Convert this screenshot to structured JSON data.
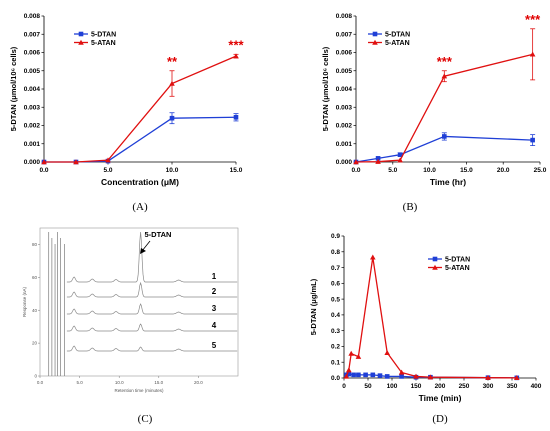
{
  "colors": {
    "dtan": "#1f3fd6",
    "atan": "#e01010",
    "star": "#e00000"
  },
  "panel_labels": {
    "a": "(A)",
    "b": "(B)",
    "c": "(C)",
    "d": "(D)"
  },
  "chart_data": [
    {
      "id": "A",
      "type": "line",
      "xlabel": "Concentration (μM)",
      "ylabel": "5-DTAN (μmol/10⁶ cells)",
      "xlim": [
        0,
        15
      ],
      "ylim": [
        0,
        0.008
      ],
      "xticks": [
        "0.0",
        "5.0",
        "10.0",
        "15.0"
      ],
      "yticks": [
        "0.000",
        "0.001",
        "0.002",
        "0.003",
        "0.004",
        "0.005",
        "0.006",
        "0.007",
        "0.008"
      ],
      "x": [
        0,
        2.5,
        5,
        10,
        15
      ],
      "series": [
        {
          "name": "5-DTAN",
          "values": [
            0,
            0,
            5e-05,
            0.0024,
            0.00245
          ],
          "errors": [
            0,
            0,
            0,
            0.0003,
            0.0002
          ]
        },
        {
          "name": "5-ATAN",
          "values": [
            0,
            0,
            0.0001,
            0.0043,
            0.0058
          ],
          "errors": [
            0,
            0,
            0,
            0.0007,
            0.0001
          ]
        }
      ],
      "annotations": [
        {
          "text": "**",
          "x": 10
        },
        {
          "text": "***",
          "x": 15
        }
      ],
      "legend": "top-left"
    },
    {
      "id": "B",
      "type": "line",
      "xlabel": "Time (hr)",
      "ylabel": "5-DTAN (μmol/10⁶ cells)",
      "xlim": [
        0,
        25
      ],
      "ylim": [
        0,
        0.008
      ],
      "xticks": [
        "0.0",
        "5.0",
        "10.0",
        "15.0",
        "20.0",
        "25.0"
      ],
      "yticks": [
        "0.000",
        "0.001",
        "0.002",
        "0.003",
        "0.004",
        "0.005",
        "0.006",
        "0.007",
        "0.008"
      ],
      "x": [
        0,
        3,
        6,
        12,
        24
      ],
      "series": [
        {
          "name": "5-DTAN",
          "values": [
            0,
            0.0002,
            0.0004,
            0.0014,
            0.0012
          ],
          "errors": [
            0,
            0,
            0.0001,
            0.0002,
            0.0003
          ]
        },
        {
          "name": "5-ATAN",
          "values": [
            0,
            2e-05,
            0.0001,
            0.0047,
            0.0059
          ],
          "errors": [
            0,
            0,
            0,
            0.0003,
            0.0014
          ]
        }
      ],
      "annotations": [
        {
          "text": "***",
          "x": 12
        },
        {
          "text": "***",
          "x": 24
        }
      ],
      "legend": "top-left"
    },
    {
      "id": "C",
      "type": "line",
      "xlabel": "Retention time (minutes)",
      "ylabel": "Response (nA)",
      "xticks": [
        "0.0",
        "5.0",
        "10.0",
        "15.0",
        "20.0"
      ],
      "yticks": [
        "0",
        "20",
        "40",
        "60",
        "80"
      ],
      "peak_label": "5-DTAN",
      "trace_labels": [
        "1",
        "2",
        "3",
        "4",
        "5"
      ]
    },
    {
      "id": "D",
      "type": "line",
      "xlabel": "Time (min)",
      "ylabel": "5-DTAN (μg/mL)",
      "xlim": [
        0,
        400
      ],
      "ylim": [
        0,
        0.9
      ],
      "xticks": [
        "0",
        "50",
        "100",
        "150",
        "200",
        "250",
        "300",
        "350",
        "400"
      ],
      "yticks": [
        "0.0",
        "0.1",
        "0.2",
        "0.3",
        "0.4",
        "0.5",
        "0.6",
        "0.7",
        "0.8",
        "0.9"
      ],
      "series": [
        {
          "name": "5-DTAN",
          "x": [
            5,
            10,
            20,
            30,
            45,
            60,
            75,
            90,
            120,
            150,
            180,
            300,
            360
          ],
          "values": [
            0.02,
            0.025,
            0.02,
            0.02,
            0.02,
            0.02,
            0.015,
            0.01,
            0.01,
            0.005,
            0.005,
            0.002,
            0.001
          ]
        },
        {
          "name": "5-ATAN",
          "x": [
            5,
            10,
            15,
            30,
            60,
            90,
            120,
            150,
            180,
            300,
            360
          ],
          "values": [
            0.01,
            0.05,
            0.155,
            0.135,
            0.765,
            0.16,
            0.035,
            0.01,
            0.005,
            0.002,
            0.001
          ]
        }
      ],
      "legend": "top-right"
    }
  ]
}
